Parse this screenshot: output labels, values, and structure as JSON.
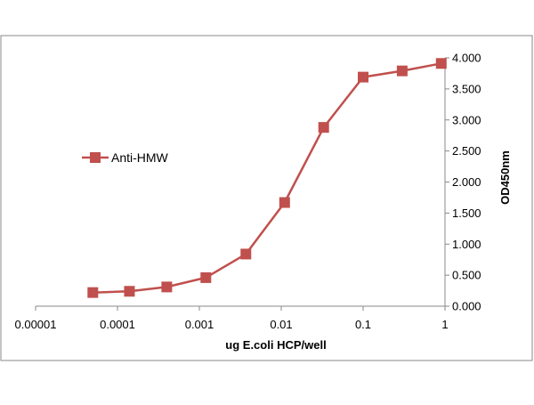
{
  "chart_data": {
    "type": "line",
    "xscale": "log",
    "x_tick_labels": [
      "0.00001",
      "0.0001",
      "0.001",
      "0.01",
      "0.1",
      "1"
    ],
    "y_tick_labels": [
      "0.000",
      "0.500",
      "1.000",
      "1.500",
      "2.000",
      "2.500",
      "3.000",
      "3.500",
      "4.000"
    ],
    "xlabel": "ug E.coli HCP/well",
    "ylabel": "OD450nm",
    "xlim": [
      1e-05,
      1
    ],
    "ylim": [
      0,
      4
    ],
    "y_axis_position": "right",
    "grid": false,
    "legend_position": "left",
    "series": [
      {
        "name": "Anti-HMW",
        "color": "#c0504d",
        "marker": "square",
        "x": [
          5e-05,
          0.00014,
          0.0004,
          0.0012,
          0.0037,
          0.011,
          0.033,
          0.1,
          0.3,
          0.9
        ],
        "y": [
          0.22,
          0.24,
          0.31,
          0.46,
          0.84,
          1.67,
          2.88,
          3.69,
          3.79,
          3.91
        ]
      }
    ]
  }
}
